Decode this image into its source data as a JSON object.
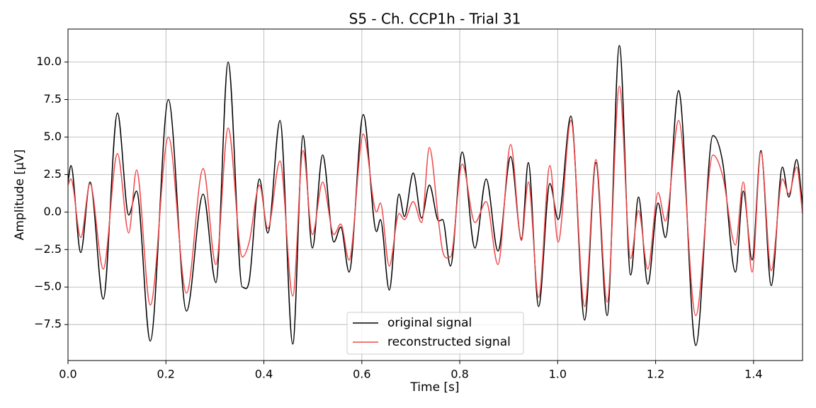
{
  "chart_data": {
    "type": "line",
    "title": "S5 - Ch. CCP1h - Trial 31",
    "x_label": "Time [s]",
    "y_label": "Amplitude [μV]",
    "x": [
      0,
      0.006,
      0.026,
      0.045,
      0.072,
      0.101,
      0.124,
      0.14,
      0.168,
      0.205,
      0.242,
      0.276,
      0.302,
      0.327,
      0.356,
      0.37,
      0.391,
      0.408,
      0.433,
      0.459,
      0.48,
      0.499,
      0.52,
      0.543,
      0.557,
      0.574,
      0.603,
      0.63,
      0.638,
      0.656,
      0.676,
      0.687,
      0.705,
      0.722,
      0.738,
      0.757,
      0.765,
      0.781,
      0.805,
      0.831,
      0.854,
      0.878,
      0.904,
      0.926,
      0.94,
      0.961,
      0.984,
      1.001,
      1.027,
      1.055,
      1.078,
      1.101,
      1.126,
      1.149,
      1.165,
      1.184,
      1.205,
      1.22,
      1.247,
      1.282,
      1.317,
      1.337,
      1.363,
      1.379,
      1.397,
      1.415,
      1.436,
      1.459,
      1.472,
      1.488,
      1.5
    ],
    "series": [
      {
        "name": "original signal",
        "color": "#000000",
        "values": [
          2.0,
          3.1,
          -2.7,
          2.0,
          -5.8,
          6.6,
          -0.2,
          1.4,
          -8.6,
          7.5,
          -6.6,
          1.2,
          -4.7,
          10.0,
          -5.0,
          -4.6,
          2.2,
          -1.4,
          6.1,
          -8.8,
          5.1,
          -2.4,
          3.8,
          -2.0,
          -1.0,
          -4.0,
          6.5,
          -1.3,
          -0.5,
          -5.2,
          1.2,
          -0.3,
          2.6,
          -0.4,
          1.8,
          -0.6,
          -0.5,
          -3.6,
          4.0,
          -2.4,
          2.2,
          -2.6,
          3.7,
          -1.8,
          3.3,
          -6.3,
          1.9,
          -0.5,
          6.4,
          -7.2,
          3.3,
          -6.9,
          11.1,
          -4.2,
          1.0,
          -4.8,
          0.6,
          -1.7,
          8.1,
          -8.9,
          5.1,
          3.3,
          -4.0,
          1.4,
          -3.2,
          4.1,
          -4.9,
          3.0,
          1.0,
          3.5,
          0.5
        ]
      },
      {
        "name": "reconstructed signal",
        "color": "#f0484a",
        "values": [
          1.8,
          2.2,
          -1.7,
          1.9,
          -3.8,
          3.9,
          -1.4,
          2.8,
          -6.2,
          5.0,
          -5.4,
          2.9,
          -3.5,
          5.6,
          -3.0,
          -2.0,
          1.8,
          -1.1,
          3.4,
          -5.6,
          4.1,
          -1.5,
          2.0,
          -1.5,
          -0.8,
          -3.2,
          5.2,
          0.0,
          0.6,
          -3.6,
          -0.1,
          -0.5,
          0.7,
          -0.7,
          4.3,
          -0.7,
          -2.6,
          -3.0,
          3.2,
          -0.7,
          0.7,
          -3.5,
          4.5,
          -1.9,
          2.0,
          -5.7,
          3.1,
          -2.0,
          6.1,
          -6.3,
          3.5,
          -6.0,
          8.4,
          -3.1,
          0.1,
          -3.8,
          1.3,
          -0.6,
          6.1,
          -6.9,
          3.8,
          2.4,
          -2.2,
          2.0,
          -4.0,
          4.0,
          -3.9,
          2.2,
          1.2,
          3.0,
          -0.1
        ]
      }
    ],
    "xlim": [
      0,
      1.5
    ],
    "ylim": [
      -9.9,
      12.2
    ],
    "xticks": [
      {
        "value": 0,
        "label": "0.0"
      },
      {
        "value": 0.2,
        "label": "0.2"
      },
      {
        "value": 0.4,
        "label": "0.4"
      },
      {
        "value": 0.6,
        "label": "0.6"
      },
      {
        "value": 0.8,
        "label": "0.8"
      },
      {
        "value": 1.0,
        "label": "1.0"
      },
      {
        "value": 1.2,
        "label": "1.2"
      },
      {
        "value": 1.4,
        "label": "1.4"
      }
    ],
    "yticks": [
      {
        "value": -7.5,
        "label": "−7.5"
      },
      {
        "value": -5,
        "label": "−5.0"
      },
      {
        "value": -2.5,
        "label": "−2.5"
      },
      {
        "value": 0,
        "label": "0.0"
      },
      {
        "value": 2.5,
        "label": "2.5"
      },
      {
        "value": 5,
        "label": "5.0"
      },
      {
        "value": 7.5,
        "label": "7.5"
      },
      {
        "value": 10,
        "label": "10.0"
      }
    ],
    "grid": true,
    "legend": "lower center"
  }
}
